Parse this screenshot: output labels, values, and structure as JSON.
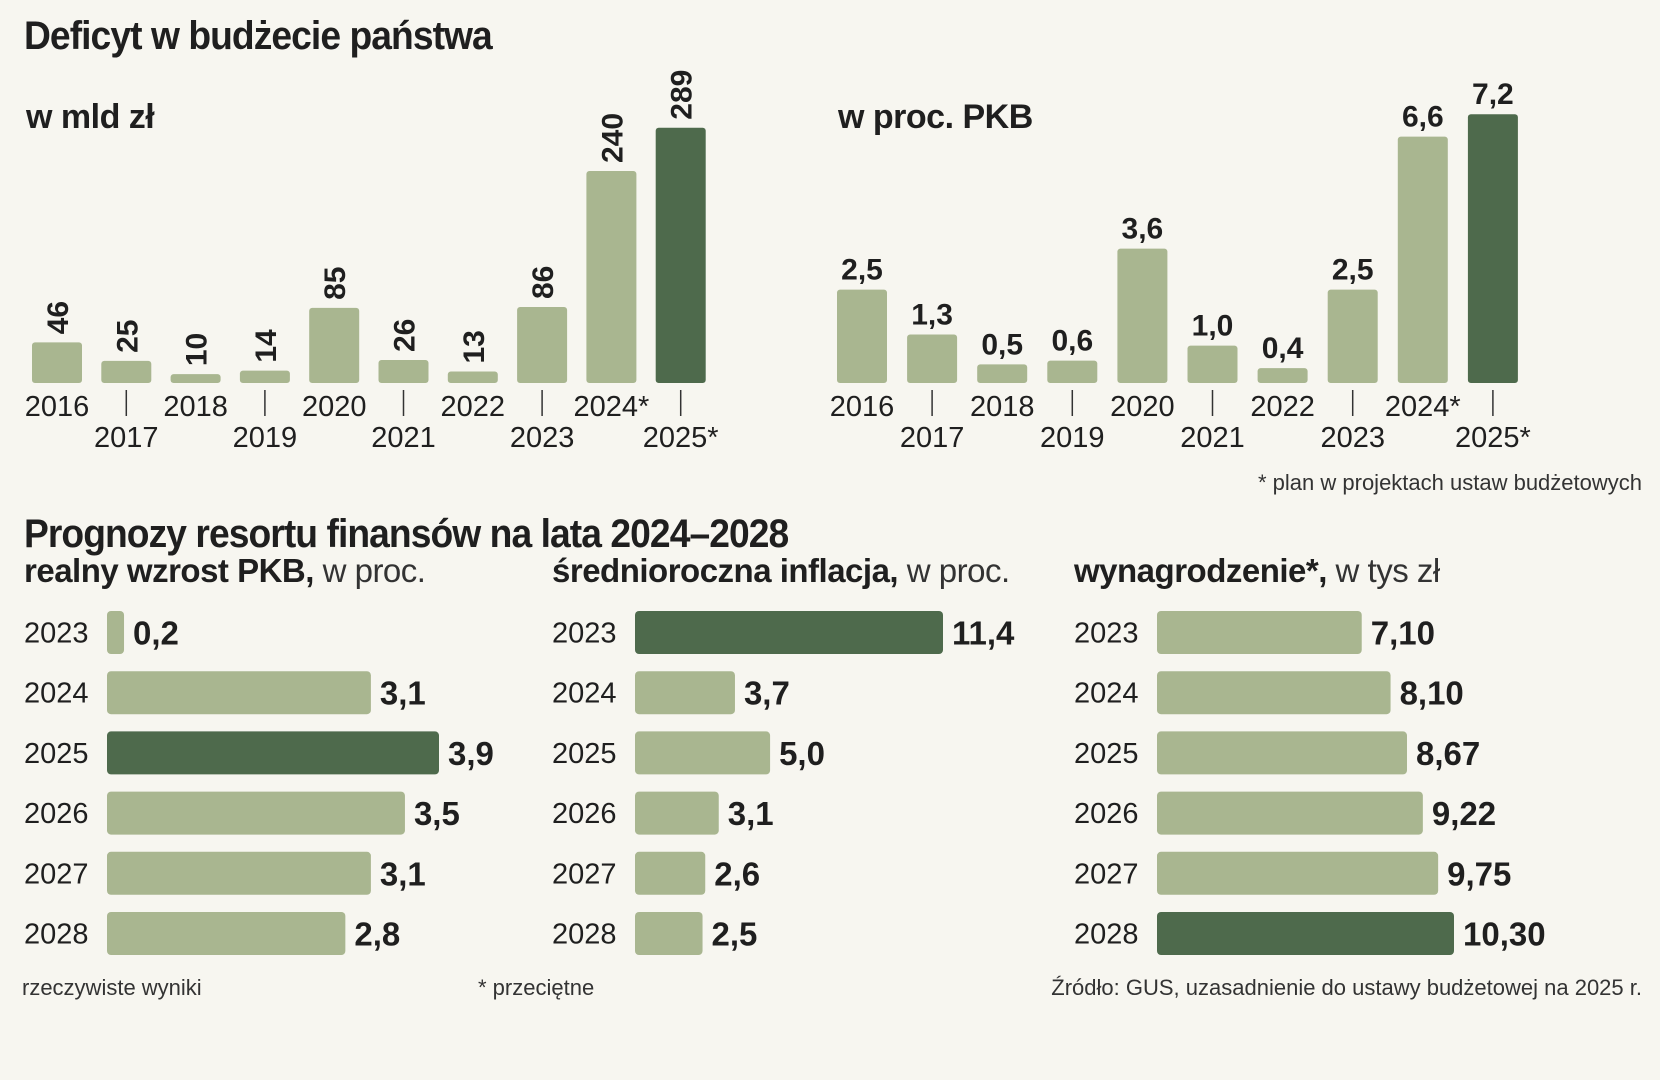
{
  "title": "Deficyt w budżecie państwa",
  "footnote_plan": "* plan w projektach ustaw budżetowych",
  "subtitle": "Prognozy resortu finansów na lata 2024–2028",
  "legend_actual": "rzeczywiste wyniki",
  "footnote_avg": "* przeciętne",
  "source": "Źródło: GUS, uzasadnienie do ustawy budżetowej na 2025 r.",
  "colors": {
    "light": "#a9b690",
    "dark": "#4e6a4c",
    "text": "#1f1f1f",
    "background": "#f7f6f0"
  },
  "chart_data": [
    {
      "type": "bar",
      "title": "w mld zł",
      "categories": [
        "2016",
        "2017",
        "2018",
        "2019",
        "2020",
        "2021",
        "2022",
        "2023",
        "2024*",
        "2025*"
      ],
      "values": [
        46,
        25,
        10,
        14,
        85,
        26,
        13,
        86,
        240,
        289
      ],
      "labels": [
        "46",
        "25",
        "10",
        "14",
        "85",
        "26",
        "13",
        "86",
        "240",
        "289"
      ],
      "highlight": [
        false,
        false,
        false,
        false,
        false,
        false,
        false,
        false,
        false,
        true
      ],
      "ylim": [
        0,
        300
      ]
    },
    {
      "type": "bar",
      "title": "w proc. PKB",
      "categories": [
        "2016",
        "2017",
        "2018",
        "2019",
        "2020",
        "2021",
        "2022",
        "2023",
        "2024*",
        "2025*"
      ],
      "values": [
        2.5,
        1.3,
        0.5,
        0.6,
        3.6,
        1.0,
        0.4,
        2.5,
        6.6,
        7.2
      ],
      "labels": [
        "2,5",
        "1,3",
        "0,5",
        "0,6",
        "3,6",
        "1,0",
        "0,4",
        "2,5",
        "6,6",
        "7,2"
      ],
      "highlight": [
        false,
        false,
        false,
        false,
        false,
        false,
        false,
        false,
        false,
        true
      ],
      "ylim": [
        0,
        7.5
      ]
    },
    {
      "type": "bar",
      "orientation": "horizontal",
      "title_bold": "realny wzrost PKB,",
      "title_light": " w proc.",
      "categories": [
        "2023",
        "2024",
        "2025",
        "2026",
        "2027",
        "2028"
      ],
      "values": [
        0.2,
        3.1,
        3.9,
        3.5,
        3.1,
        2.8
      ],
      "labels": [
        "0,2",
        "3,1",
        "3,9",
        "3,5",
        "3,1",
        "2,8"
      ],
      "highlight": [
        false,
        false,
        true,
        false,
        false,
        false
      ],
      "xlim": [
        0,
        3.9
      ]
    },
    {
      "type": "bar",
      "orientation": "horizontal",
      "title_bold": "średnioroczna inflacja,",
      "title_light": " w proc.",
      "categories": [
        "2023",
        "2024",
        "2025",
        "2026",
        "2027",
        "2028"
      ],
      "values": [
        11.4,
        3.7,
        5.0,
        3.1,
        2.6,
        2.5
      ],
      "labels": [
        "11,4",
        "3,7",
        "5,0",
        "3,1",
        "2,6",
        "2,5"
      ],
      "highlight": [
        true,
        false,
        false,
        false,
        false,
        false
      ],
      "xlim": [
        0,
        11.4
      ]
    },
    {
      "type": "bar",
      "orientation": "horizontal",
      "title_bold": "wynagrodzenie*,",
      "title_light": " w tys zł",
      "categories": [
        "2023",
        "2024",
        "2025",
        "2026",
        "2027",
        "2028"
      ],
      "values": [
        7.1,
        8.1,
        8.67,
        9.22,
        9.75,
        10.3
      ],
      "labels": [
        "7,10",
        "8,10",
        "8,67",
        "9,22",
        "9,75",
        "10,30"
      ],
      "highlight": [
        false,
        false,
        false,
        false,
        false,
        true
      ],
      "xlim": [
        0,
        10.3
      ]
    }
  ]
}
